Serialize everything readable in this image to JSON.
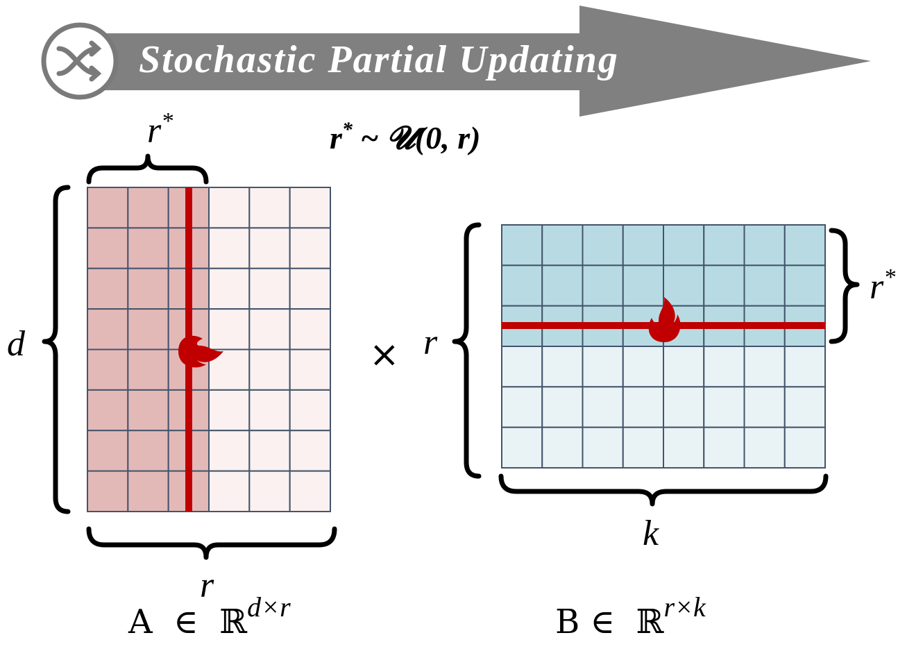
{
  "banner": {
    "title": "Stochastic Partial Updating"
  },
  "formula": {
    "var": "r",
    "sup": "*",
    "rest": " ~ 𝓤(0, r)"
  },
  "matrix_a": {
    "top_label": {
      "base": "r",
      "sup": "*"
    },
    "left_label": "d",
    "bottom_label": "r",
    "caption": {
      "base": "A  ∈  ℝ",
      "sup": "d×r"
    }
  },
  "operator": "×",
  "matrix_b": {
    "left_label": "r",
    "right_label": {
      "base": "r",
      "sup": "*"
    },
    "bottom_label": "k",
    "caption": {
      "base": "B ∈  ℝ",
      "sup": "r×k"
    }
  }
}
